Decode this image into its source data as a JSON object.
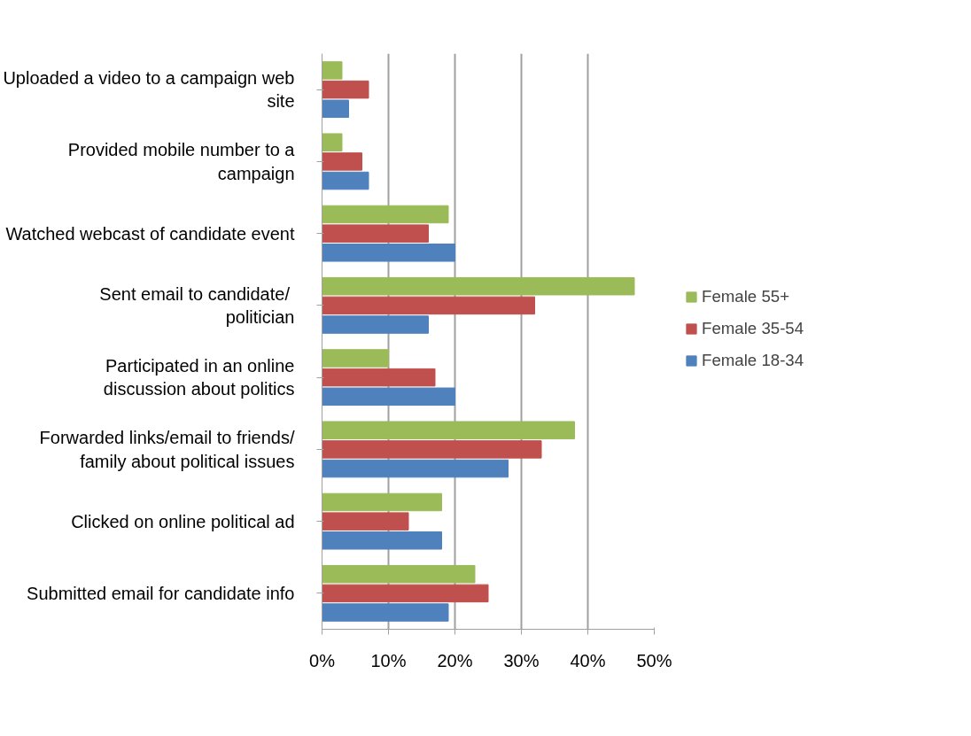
{
  "chart_data": {
    "type": "bar",
    "orientation": "horizontal",
    "categories": [
      "Uploaded a video to a campaign web site",
      "Provided mobile number to a campaign",
      "Watched webcast of candidate event",
      "Sent  email to candidate/ politician",
      "Participated in an online discussion about politics",
      "Forwarded links/email to friends/ family about political issues",
      "Clicked on online political ad",
      "Submitted email for candidate info"
    ],
    "series": [
      {
        "name": "Female 55+",
        "color": "#9bbb59",
        "values": [
          3,
          3,
          19,
          47,
          10,
          38,
          18,
          23
        ]
      },
      {
        "name": "Female 35-54",
        "color": "#c0504d",
        "values": [
          7,
          6,
          16,
          32,
          17,
          33,
          13,
          25
        ]
      },
      {
        "name": "Female 18-34",
        "color": "#4f81bd",
        "values": [
          4,
          7,
          20,
          16,
          20,
          28,
          18,
          19
        ]
      }
    ],
    "xlim": [
      0,
      50
    ],
    "xticks": [
      {
        "value": 0,
        "label": "0%"
      },
      {
        "value": 10,
        "label": "10%"
      },
      {
        "value": 20,
        "label": "20%"
      },
      {
        "value": 30,
        "label": "30%"
      },
      {
        "value": 40,
        "label": "40%"
      },
      {
        "value": 50,
        "label": "50%"
      }
    ],
    "grid": "x",
    "legend": "right"
  }
}
